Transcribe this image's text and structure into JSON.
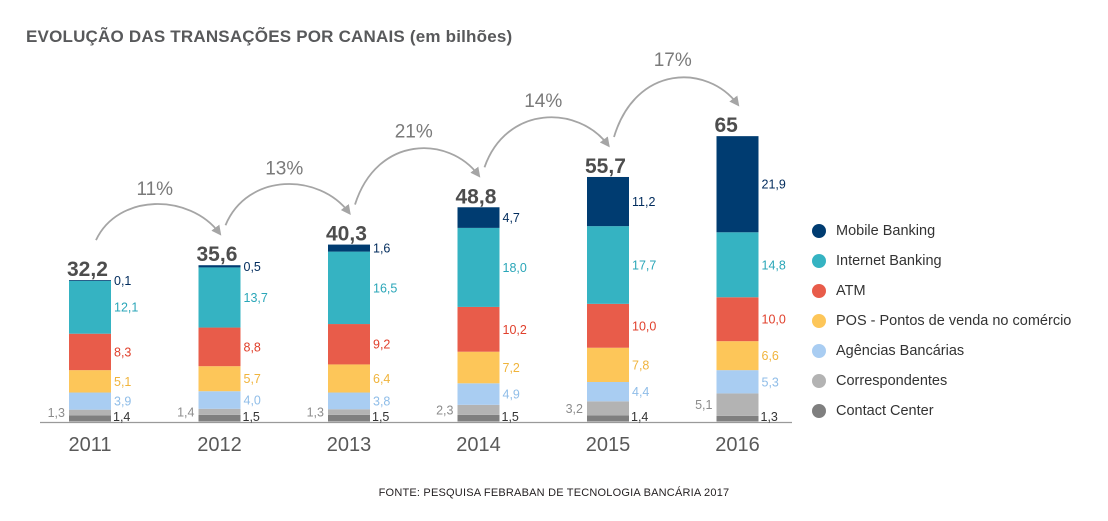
{
  "chart_data": {
    "type": "bar",
    "stacked": true,
    "title": "EVOLUÇÃO DAS TRANSAÇÕES POR CANAIS (em bilhões)",
    "source": "FONTE: PESQUISA FEBRABAN DE TECNOLOGIA BANCÁRIA 2017",
    "categories": [
      "2011",
      "2012",
      "2013",
      "2014",
      "2015",
      "2016"
    ],
    "totals": [
      "32,2",
      "35,6",
      "40,3",
      "48,8",
      "55,7",
      "65"
    ],
    "growth": [
      "11%",
      "13%",
      "21%",
      "14%",
      "17%"
    ],
    "series": [
      {
        "name": "Contact Center",
        "color": "#7f7f7f",
        "label_color": "#333333",
        "values": [
          1.4,
          1.5,
          1.5,
          1.5,
          1.4,
          1.3
        ],
        "labels": [
          "1,4",
          "1,5",
          "1,5",
          "1,5",
          "1,4",
          "1,3"
        ]
      },
      {
        "name": "Correspondentes",
        "color": "#b3b3b3",
        "label_color": "#8c8c8c",
        "values": [
          1.3,
          1.4,
          1.3,
          2.3,
          3.2,
          5.1
        ],
        "labels": [
          "1,3",
          "1,4",
          "1,3",
          "2,3",
          "3,2",
          "5,1"
        ]
      },
      {
        "name": "Agências Bancárias",
        "color": "#a9cdf2",
        "label_color": "#8fbde8",
        "values": [
          3.9,
          4.0,
          3.8,
          4.9,
          4.4,
          5.3
        ],
        "labels": [
          "3,9",
          "4,0",
          "3,8",
          "4,9",
          "4,4",
          "5,3"
        ]
      },
      {
        "name": "POS - Pontos de venda no comércio",
        "color": "#fdc659",
        "label_color": "#f0b43c",
        "values": [
          5.1,
          5.7,
          6.4,
          7.2,
          7.8,
          6.6
        ],
        "labels": [
          "5,1",
          "5,7",
          "6,4",
          "7,2",
          "7,8",
          "6,6"
        ]
      },
      {
        "name": "ATM",
        "color": "#e85c4a",
        "label_color": "#e0402c",
        "values": [
          8.3,
          8.8,
          9.2,
          10.2,
          10.0,
          10.0
        ],
        "labels": [
          "8,3",
          "8,8",
          "9,2",
          "10,2",
          "10,0",
          "10,0"
        ]
      },
      {
        "name": "Internet Banking",
        "color": "#35b3c2",
        "label_color": "#2aa6b8",
        "values": [
          12.1,
          13.7,
          16.5,
          18.0,
          17.7,
          14.8
        ],
        "labels": [
          "12,1",
          "13,7",
          "16,5",
          "18,0",
          "17,7",
          "14,8"
        ]
      },
      {
        "name": "Mobile Banking",
        "color": "#003c71",
        "label_color": "#002b5c",
        "values": [
          0.1,
          0.5,
          1.6,
          4.7,
          11.2,
          21.9
        ],
        "labels": [
          "0,1",
          "0,5",
          "1,6",
          "4,7",
          "11,2",
          "21,9"
        ]
      }
    ],
    "legend_order": [
      "Mobile Banking",
      "Internet Banking",
      "ATM",
      "POS - Pontos de venda no comércio",
      "Agências Bancárias",
      "Correspondentes",
      "Contact Center"
    ],
    "legend_position": "right",
    "grid": false
  }
}
